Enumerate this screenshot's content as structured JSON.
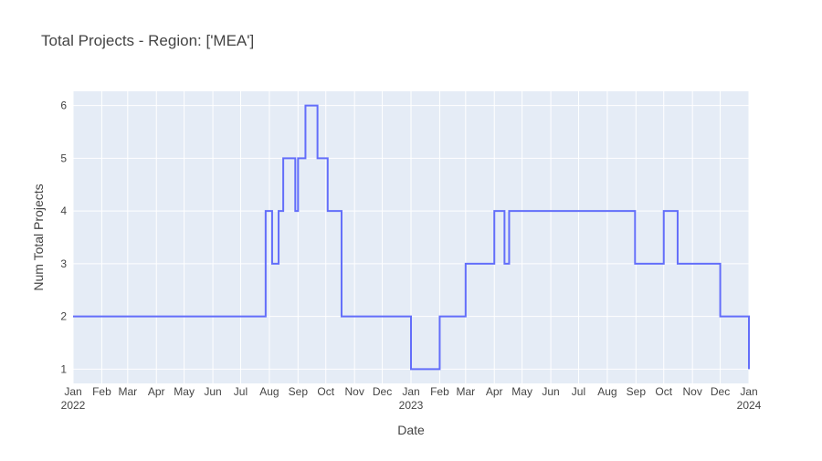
{
  "chart_data": {
    "type": "line",
    "line_shape": "step",
    "title": "Total Projects - Region: ['MEA']",
    "xlabel": "Date",
    "ylabel": "Num Total Projects",
    "xlim": [
      "2022-01-01",
      "2024-01-01"
    ],
    "ylim": [
      0.73,
      6.27
    ],
    "grid": true,
    "legend": "none",
    "colors": {
      "line": "#636efa",
      "plot_bg": "#e5ecf6",
      "grid": "#ffffff",
      "text": "#444444"
    },
    "x_ticks": [
      {
        "date": "2022-01-01",
        "label": "Jan",
        "sub": "2022"
      },
      {
        "date": "2022-02-01",
        "label": "Feb"
      },
      {
        "date": "2022-03-01",
        "label": "Mar"
      },
      {
        "date": "2022-04-01",
        "label": "Apr"
      },
      {
        "date": "2022-05-01",
        "label": "May"
      },
      {
        "date": "2022-06-01",
        "label": "Jun"
      },
      {
        "date": "2022-07-01",
        "label": "Jul"
      },
      {
        "date": "2022-08-01",
        "label": "Aug"
      },
      {
        "date": "2022-09-01",
        "label": "Sep"
      },
      {
        "date": "2022-10-01",
        "label": "Oct"
      },
      {
        "date": "2022-11-01",
        "label": "Nov"
      },
      {
        "date": "2022-12-01",
        "label": "Dec"
      },
      {
        "date": "2023-01-01",
        "label": "Jan",
        "sub": "2023"
      },
      {
        "date": "2023-02-01",
        "label": "Feb"
      },
      {
        "date": "2023-03-01",
        "label": "Mar"
      },
      {
        "date": "2023-04-01",
        "label": "Apr"
      },
      {
        "date": "2023-05-01",
        "label": "May"
      },
      {
        "date": "2023-06-01",
        "label": "Jun"
      },
      {
        "date": "2023-07-01",
        "label": "Jul"
      },
      {
        "date": "2023-08-01",
        "label": "Aug"
      },
      {
        "date": "2023-09-01",
        "label": "Sep"
      },
      {
        "date": "2023-10-01",
        "label": "Oct"
      },
      {
        "date": "2023-11-01",
        "label": "Nov"
      },
      {
        "date": "2023-12-01",
        "label": "Dec"
      },
      {
        "date": "2024-01-01",
        "label": "Jan",
        "sub": "2024"
      }
    ],
    "y_ticks": [
      1,
      2,
      3,
      4,
      5,
      6
    ],
    "series": [
      {
        "x": [
          "2022-01-01",
          "2022-07-28",
          "2022-08-04",
          "2022-08-11",
          "2022-08-16",
          "2022-08-29",
          "2022-09-01",
          "2022-09-09",
          "2022-09-22",
          "2022-10-03",
          "2022-10-18",
          "2022-10-31",
          "2023-01-01",
          "2023-02-01",
          "2023-03-01",
          "2023-04-01",
          "2023-04-12",
          "2023-04-17",
          "2023-08-31",
          "2023-10-01",
          "2023-10-16",
          "2023-12-01",
          "2023-12-28",
          "2024-01-01"
        ],
        "y": [
          2,
          4,
          3,
          4,
          5,
          4,
          5,
          6,
          5,
          4,
          2,
          2,
          1,
          2,
          3,
          4,
          3,
          4,
          3,
          4,
          3,
          2,
          2,
          1
        ]
      }
    ]
  }
}
